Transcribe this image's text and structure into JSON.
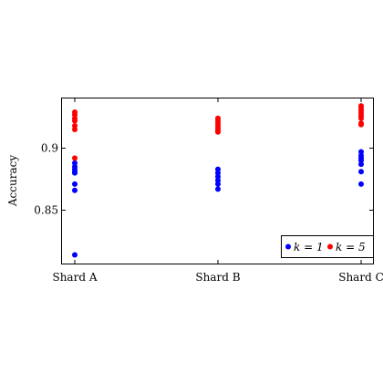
{
  "chart_data": {
    "type": "scatter",
    "categories": [
      "Shard A",
      "Shard B",
      "Shard C"
    ],
    "ylabel": "Accuracy",
    "xlabel": "",
    "title": "",
    "ylim": [
      0.807,
      0.94
    ],
    "yticks": [
      0.85,
      0.9
    ],
    "ytick_labels": [
      "0.85",
      "0.9"
    ],
    "grid": false,
    "legend_position": "bottom-right",
    "series": [
      {
        "name": "k = 1",
        "color": "#0000ff",
        "points": [
          {
            "category": "Shard A",
            "values": [
              0.888,
              0.885,
              0.883,
              0.881,
              0.88,
              0.871,
              0.866,
              0.814
            ]
          },
          {
            "category": "Shard B",
            "values": [
              0.883,
              0.88,
              0.877,
              0.874,
              0.871,
              0.867
            ]
          },
          {
            "category": "Shard C",
            "values": [
              0.897,
              0.894,
              0.892,
              0.89,
              0.887,
              0.881,
              0.871
            ]
          }
        ]
      },
      {
        "name": "k = 5",
        "color": "#ff0000",
        "points": [
          {
            "category": "Shard A",
            "values": [
              0.929,
              0.927,
              0.924,
              0.922,
              0.918,
              0.915,
              0.892
            ]
          },
          {
            "category": "Shard B",
            "values": [
              0.924,
              0.922,
              0.92,
              0.918,
              0.916,
              0.914,
              0.913
            ]
          },
          {
            "category": "Shard C",
            "values": [
              0.934,
              0.932,
              0.93,
              0.928,
              0.926,
              0.924,
              0.92,
              0.919
            ]
          }
        ]
      }
    ]
  }
}
